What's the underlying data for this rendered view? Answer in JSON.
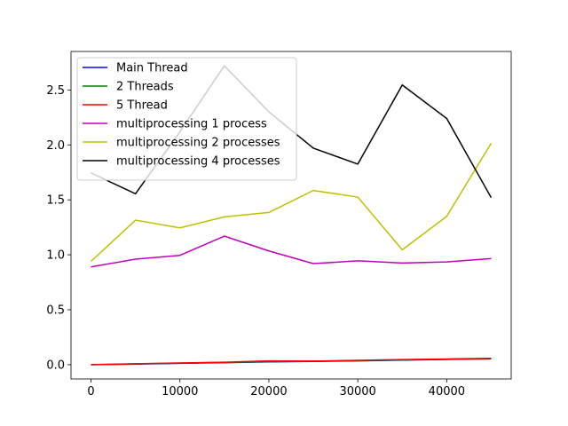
{
  "chart_data": {
    "type": "line",
    "title": "",
    "xlabel": "",
    "ylabel": "",
    "xlim": [
      -2250,
      47250
    ],
    "ylim": [
      -0.13,
      2.85
    ],
    "xticks": [
      0,
      10000,
      20000,
      30000,
      40000
    ],
    "yticks": [
      0.0,
      0.5,
      1.0,
      1.5,
      2.0,
      2.5
    ],
    "xtick_labels": [
      "0",
      "10000",
      "20000",
      "30000",
      "40000"
    ],
    "ytick_labels": [
      "0.0",
      "0.5",
      "1.0",
      "1.5",
      "2.0",
      "2.5"
    ],
    "grid": false,
    "legend_position": "upper-left",
    "x": [
      0,
      5000,
      10000,
      15000,
      20000,
      25000,
      30000,
      35000,
      40000,
      45000
    ],
    "series": [
      {
        "name": "Main Thread",
        "color": "#0000ff",
        "values": [
          0.0,
          0.005,
          0.012,
          0.018,
          0.025,
          0.03,
          0.035,
          0.042,
          0.048,
          0.053
        ]
      },
      {
        "name": "2 Threads",
        "color": "#008000",
        "values": [
          0.0,
          0.007,
          0.014,
          0.02,
          0.028,
          0.032,
          0.037,
          0.044,
          0.05,
          0.056
        ]
      },
      {
        "name": "5 Thread",
        "color": "#ff0000",
        "values": [
          0.0,
          0.008,
          0.015,
          0.022,
          0.035,
          0.033,
          0.04,
          0.047,
          0.052,
          0.058
        ]
      },
      {
        "name": "multiprocessing 1 process",
        "color": "#bf00bf",
        "values": [
          0.89,
          0.96,
          0.995,
          1.17,
          1.035,
          0.92,
          0.945,
          0.925,
          0.935,
          0.965
        ]
      },
      {
        "name": "multiprocessing 2 processes",
        "color": "#bfbf00",
        "values": [
          0.94,
          1.315,
          1.245,
          1.345,
          1.385,
          1.585,
          1.525,
          1.045,
          1.35,
          2.015
        ]
      },
      {
        "name": "multiprocessing 4 processes",
        "color": "#000000",
        "values": [
          1.745,
          1.555,
          2.12,
          2.72,
          2.3,
          1.97,
          1.825,
          2.545,
          2.24,
          1.52
        ]
      }
    ]
  }
}
